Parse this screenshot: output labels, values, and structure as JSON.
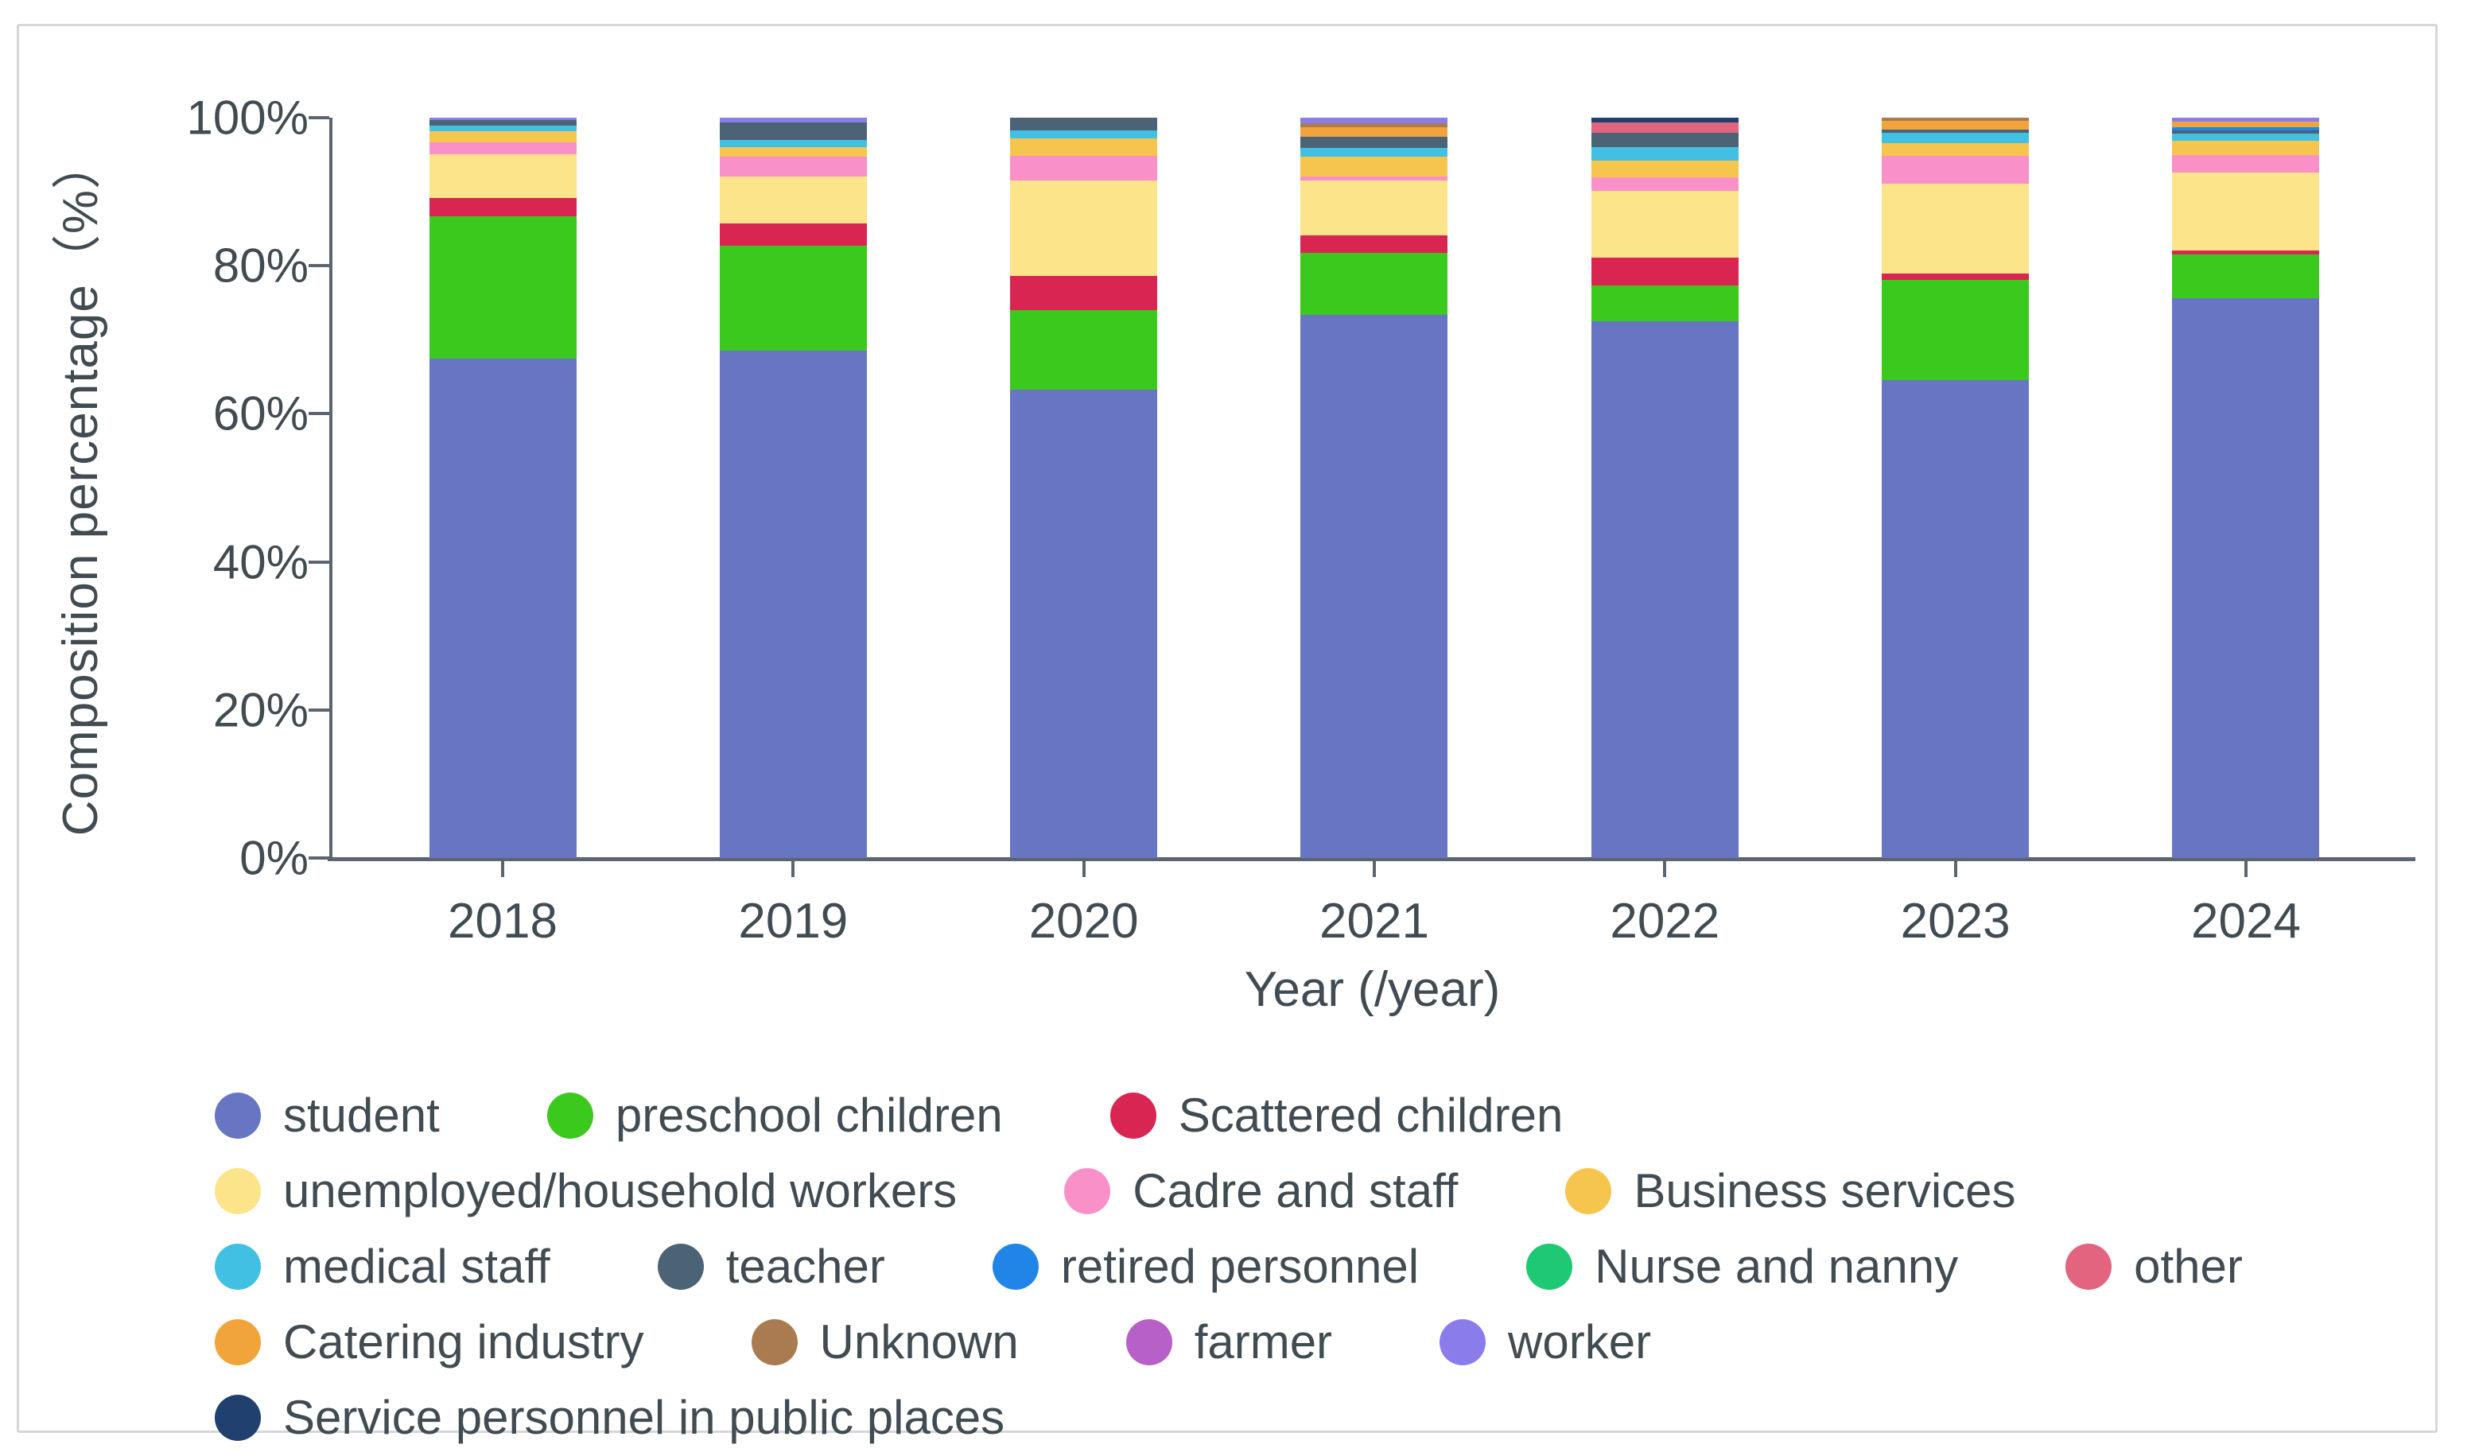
{
  "chart_data": {
    "type": "bar",
    "stacked": true,
    "xlabel": "Year (/year)",
    "ylabel": "Composition percentage（%）",
    "ylim": [
      0,
      100
    ],
    "yticks": [
      0,
      20,
      40,
      60,
      80,
      100
    ],
    "ytick_suffix": "%",
    "grid": false,
    "legend_position": "bottom",
    "categories": [
      "2018",
      "2019",
      "2020",
      "2021",
      "2022",
      "2023",
      "2024"
    ],
    "series": [
      {
        "name": "student",
        "color": "#6775c3",
        "values": [
          67.5,
          68.5,
          63.3,
          73.4,
          72.5,
          64.6,
          75.6
        ]
      },
      {
        "name": "preschool children",
        "color": "#3cc91d",
        "values": [
          19.2,
          14.2,
          10.7,
          8.3,
          4.8,
          13.5,
          5.9
        ]
      },
      {
        "name": "Scattered children",
        "color": "#d92552",
        "values": [
          2.4,
          3.0,
          4.6,
          2.4,
          3.8,
          0.9,
          0.6
        ]
      },
      {
        "name": "unemployed/household workers",
        "color": "#fbe489",
        "values": [
          6.0,
          6.4,
          12.9,
          7.4,
          9.0,
          12.1,
          10.5
        ]
      },
      {
        "name": "Cadre and staff",
        "color": "#fa90c8",
        "values": [
          1.6,
          2.6,
          3.3,
          0.6,
          1.9,
          3.7,
          2.4
        ]
      },
      {
        "name": "Business services",
        "color": "#f6c54e",
        "values": [
          1.5,
          1.3,
          2.4,
          2.6,
          2.2,
          1.8,
          1.9
        ]
      },
      {
        "name": "medical staff",
        "color": "#41c0e3",
        "values": [
          0.7,
          1.0,
          1.1,
          1.2,
          1.8,
          1.4,
          1.0
        ]
      },
      {
        "name": "teacher",
        "color": "#4b6375",
        "values": [
          0.8,
          2.4,
          1.7,
          1.5,
          2.0,
          0.4,
          0.4
        ]
      },
      {
        "name": "retired personnel",
        "color": "#2185e8",
        "values": [
          0,
          0,
          0,
          0,
          0,
          0,
          0.4
        ]
      },
      {
        "name": "Nurse and nanny",
        "color": "#1fc973",
        "values": [
          0,
          0,
          0,
          0,
          0,
          0,
          0
        ]
      },
      {
        "name": "other",
        "color": "#e2647e",
        "values": [
          0,
          0,
          0,
          0,
          1.4,
          0,
          0
        ]
      },
      {
        "name": "Catering industry",
        "color": "#f2a43c",
        "values": [
          0,
          0,
          0,
          1.3,
          0,
          1.2,
          0.8
        ]
      },
      {
        "name": "Unknown",
        "color": "#aa7b51",
        "values": [
          0,
          0,
          0,
          0.6,
          0,
          0.4,
          0
        ]
      },
      {
        "name": "farmer",
        "color": "#b760c8",
        "values": [
          0,
          0,
          0,
          0,
          0,
          0,
          0
        ]
      },
      {
        "name": "worker",
        "color": "#8b7cec",
        "values": [
          0.3,
          0.6,
          0,
          0.7,
          0,
          0,
          0.5
        ]
      },
      {
        "name": "Service personnel in public places",
        "color": "#20406f",
        "values": [
          0,
          0,
          0,
          0,
          0.6,
          0,
          0
        ]
      }
    ],
    "legend_rows": [
      [
        0,
        1,
        2
      ],
      [
        3,
        4,
        5
      ],
      [
        6,
        7,
        8,
        9,
        10
      ],
      [
        11,
        12,
        13,
        14
      ],
      [
        15
      ]
    ]
  }
}
